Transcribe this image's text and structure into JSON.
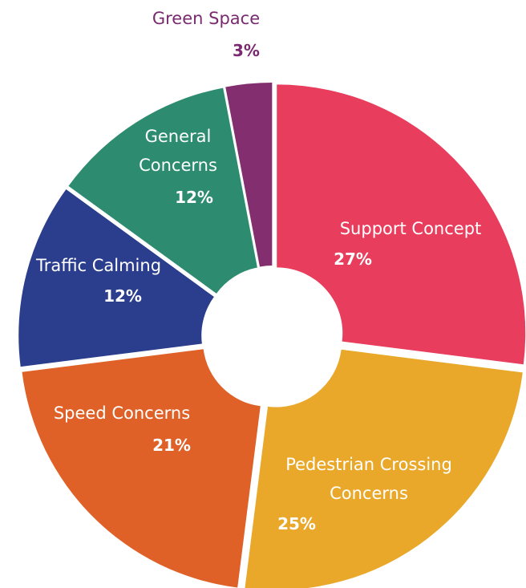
{
  "chart_data": {
    "type": "pie",
    "donut": true,
    "title": "",
    "start": "top, clockwise",
    "categories": [
      "Support Concept",
      "Pedestrian Crossing Concerns",
      "Speed Concerns",
      "Traffic Calming",
      "General Concerns",
      "Green Space"
    ],
    "values": [
      27,
      25,
      21,
      12,
      12,
      3
    ],
    "value_labels": [
      "27%",
      "25%",
      "21%",
      "12%",
      "12%",
      "3%"
    ],
    "colors": [
      "#e83d5c",
      "#e9a829",
      "#df6127",
      "#2b3d8d",
      "#2d8c70",
      "#832e6e"
    ],
    "slices": [
      {
        "name_lines": [
          "Support Concept"
        ],
        "pct": "27%"
      },
      {
        "name_lines": [
          "Pedestrian Crossing",
          "Concerns"
        ],
        "pct": "25%"
      },
      {
        "name_lines": [
          "Speed Concerns"
        ],
        "pct": "21%"
      },
      {
        "name_lines": [
          "Traffic Calming"
        ],
        "pct": "12%"
      },
      {
        "name_lines": [
          "General",
          "Concerns"
        ],
        "pct": "12%"
      },
      {
        "name_lines": [
          "Green Space"
        ],
        "pct": "3%",
        "outside": true
      }
    ]
  }
}
